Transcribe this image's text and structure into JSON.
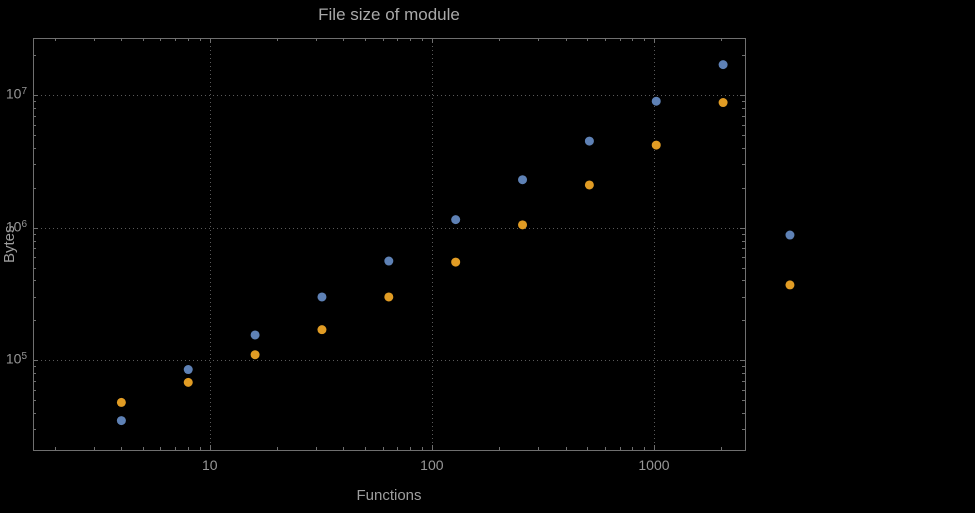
{
  "title": "File size of module",
  "xlabel": "Functions",
  "ylabel": "Bytes",
  "colors": {
    "background": "#000000",
    "frame": "#6f6f6f",
    "grid": "#5a5a5a",
    "text": "#9e9e9e",
    "series1": "#5E81B5",
    "series2": "#E19C24"
  },
  "chart_data": {
    "type": "scatter",
    "title": "File size of module",
    "xlabel": "Functions",
    "ylabel": "Bytes",
    "x_scale": "log",
    "y_scale": "log",
    "xlim": [
      1.6,
      2570
    ],
    "ylim": [
      21000,
      27000000
    ],
    "grid": "dotted gray lines at decade ticks",
    "legend": "none",
    "x": [
      4,
      8,
      16,
      32,
      64,
      128,
      256,
      512,
      1024,
      2048,
      4096
    ],
    "series": [
      {
        "name": "series-1-blue",
        "color": "#5E81B5",
        "values": [
          35000,
          85000,
          155000,
          300000,
          560000,
          1150000,
          2300000,
          4500000,
          9000000,
          17000000,
          880000
        ]
      },
      {
        "name": "series-2-orange",
        "color": "#E19C24",
        "values": [
          48000,
          68000,
          110000,
          170000,
          300000,
          550000,
          1050000,
          2100000,
          4200000,
          8800000,
          370000
        ]
      }
    ],
    "x_ticks": [
      {
        "value": 10,
        "label": "10"
      },
      {
        "value": 100,
        "label": "100"
      },
      {
        "value": 1000,
        "label": "1000"
      }
    ],
    "y_ticks": [
      {
        "value": 100000,
        "label": "10^5"
      },
      {
        "value": 1000000,
        "label": "10^6"
      },
      {
        "value": 10000000,
        "label": "10^7"
      }
    ]
  }
}
